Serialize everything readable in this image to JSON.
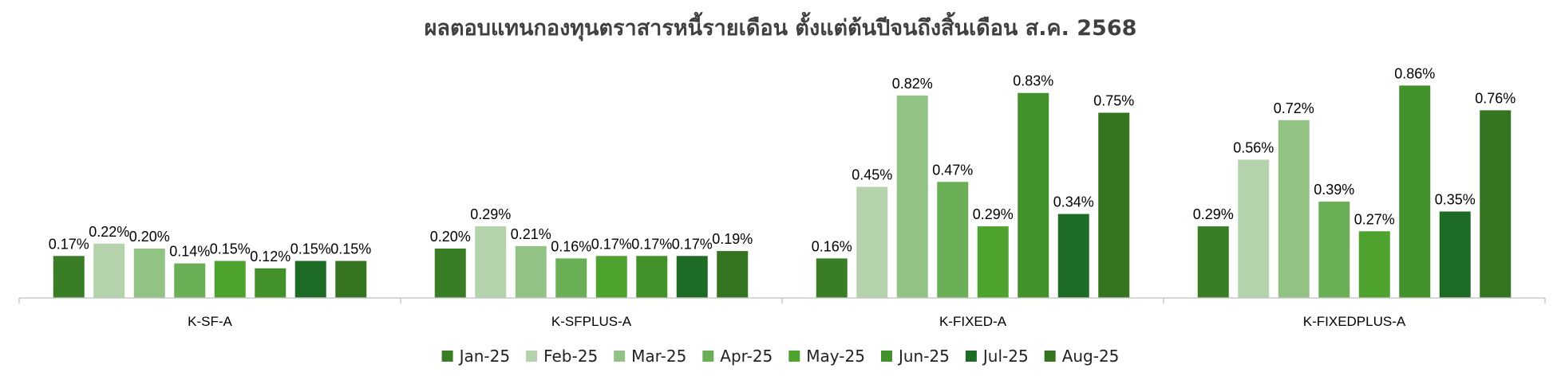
{
  "chart_data": {
    "type": "bar",
    "title": "ผลตอบแทนกองทุนตราสารหนี้รายเดือน ตั้งแต่ต้นปีจนถึงสิ้นเดือน ส.ค. 2568",
    "categories": [
      "K-SF-A",
      "K-SFPLUS-A",
      "K-FIXED-A",
      "K-FIXEDPLUS-A"
    ],
    "series": [
      {
        "name": "Jan-25",
        "color": "#3a7d27",
        "values": [
          0.17,
          0.2,
          0.16,
          0.29
        ],
        "labels": [
          "0.17%",
          "0.20%",
          "0.16%",
          "0.29%"
        ]
      },
      {
        "name": "Feb-25",
        "color": "#b4d3ac",
        "values": [
          0.22,
          0.29,
          0.45,
          0.56
        ],
        "labels": [
          "0.22%",
          "0.29%",
          "0.45%",
          "0.56%"
        ]
      },
      {
        "name": "Mar-25",
        "color": "#93c285",
        "values": [
          0.2,
          0.21,
          0.82,
          0.72
        ],
        "labels": [
          "0.20%",
          "0.21%",
          "0.82%",
          "0.72%"
        ]
      },
      {
        "name": "Apr-25",
        "color": "#6aaf56",
        "values": [
          0.14,
          0.16,
          0.47,
          0.39
        ],
        "labels": [
          "0.14%",
          "0.16%",
          "0.47%",
          "0.39%"
        ]
      },
      {
        "name": "May-25",
        "color": "#4ea22e",
        "values": [
          0.15,
          0.17,
          0.29,
          0.27
        ],
        "labels": [
          "0.15%",
          "0.17%",
          "0.29%",
          "0.27%"
        ]
      },
      {
        "name": "Jun-25",
        "color": "#42912b",
        "values": [
          0.12,
          0.17,
          0.83,
          0.86
        ],
        "labels": [
          "0.12%",
          "0.17%",
          "0.83%",
          "0.86%"
        ]
      },
      {
        "name": "Jul-25",
        "color": "#1e6b25",
        "values": [
          0.15,
          0.17,
          0.34,
          0.35
        ],
        "labels": [
          "0.15%",
          "0.17%",
          "0.34%",
          "0.35%"
        ]
      },
      {
        "name": "Aug-25",
        "color": "#357421",
        "values": [
          0.15,
          0.19,
          0.75,
          0.76
        ],
        "labels": [
          "0.15%",
          "0.19%",
          "0.75%",
          "0.76%"
        ]
      }
    ],
    "ylim": [
      0,
      1.0
    ],
    "grid": false,
    "legend_position": "bottom"
  }
}
